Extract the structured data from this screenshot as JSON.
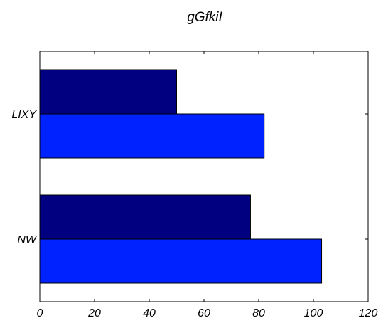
{
  "chart_data": {
    "type": "bar",
    "orientation": "horizontal",
    "title": "gGfkiI",
    "xlabel": "",
    "ylabel": "",
    "categories": [
      "LIXY",
      "NW"
    ],
    "series": [
      {
        "values": [
          50,
          77
        ],
        "color": "#000080"
      },
      {
        "values": [
          82,
          103
        ],
        "color": "#0022ff"
      }
    ],
    "xlim": [
      0,
      120
    ],
    "xticks": [
      "0",
      "20",
      "40",
      "60",
      "80",
      "100",
      "120"
    ],
    "grid": false,
    "legend": "none"
  }
}
